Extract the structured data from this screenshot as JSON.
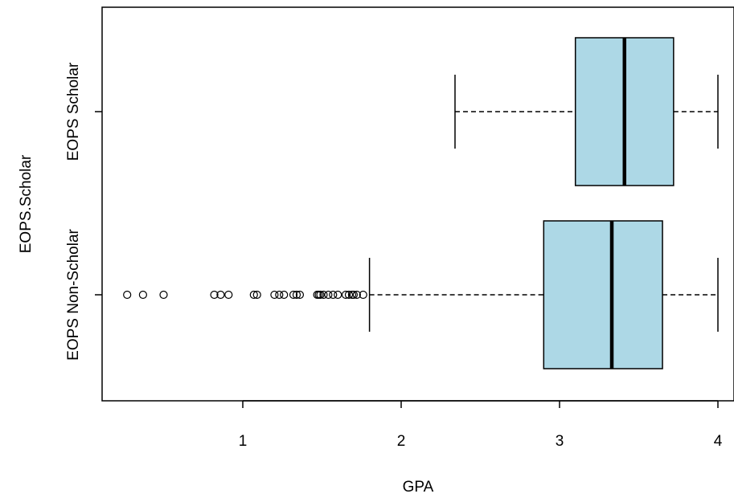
{
  "chart_data": {
    "type": "boxplot",
    "orientation": "horizontal",
    "xlabel": "GPA",
    "ylabel": "EOPS.Scholar",
    "x_ticks": [
      1,
      2,
      3,
      4
    ],
    "x_tick_labels": [
      "1",
      "2",
      "3",
      "4"
    ],
    "xlim": [
      0.13,
      4.03
    ],
    "categories": [
      "EOPS Non-Scholar",
      "EOPS Scholar"
    ],
    "box_fill": "#add8e6",
    "groups": [
      {
        "name": "EOPS Non-Scholar",
        "whisker_low": 1.8,
        "q1": 2.9,
        "median": 3.33,
        "q3": 3.65,
        "whisker_high": 4.0,
        "outliers": [
          0.27,
          0.37,
          0.5,
          0.82,
          0.86,
          0.91,
          1.07,
          1.09,
          1.2,
          1.23,
          1.26,
          1.32,
          1.34,
          1.36,
          1.47,
          1.48,
          1.49,
          1.51,
          1.54,
          1.57,
          1.6,
          1.65,
          1.67,
          1.69,
          1.7,
          1.72,
          1.76
        ]
      },
      {
        "name": "EOPS Scholar",
        "whisker_low": 2.34,
        "q1": 3.1,
        "median": 3.41,
        "q3": 3.72,
        "whisker_high": 4.0,
        "outliers": []
      }
    ]
  }
}
